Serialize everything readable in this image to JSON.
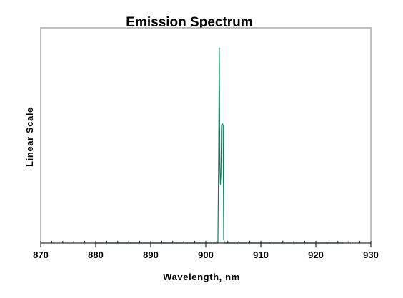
{
  "chart_data": {
    "type": "line",
    "title": "Emission Spectrum",
    "xlabel": "Wavelength, nm",
    "ylabel": "Linear Scale",
    "xlim": [
      870,
      930
    ],
    "ylim": [
      0,
      1
    ],
    "x_ticks": [
      870,
      880,
      890,
      900,
      910,
      920,
      930
    ],
    "y_ticks_shown": false,
    "grid": false,
    "legend": "none",
    "series": [
      {
        "color": "#00855f",
        "x": [
          880,
          902.2,
          902.35,
          902.45,
          902.55,
          902.65,
          902.75,
          902.85,
          902.95,
          903.05,
          903.15,
          903.25,
          903.4,
          925
        ],
        "y": [
          0,
          0,
          0.5,
          1.0,
          0.4,
          0.3,
          0.35,
          0.6,
          0.61,
          0.61,
          0.6,
          0.02,
          0,
          0
        ]
      }
    ]
  }
}
